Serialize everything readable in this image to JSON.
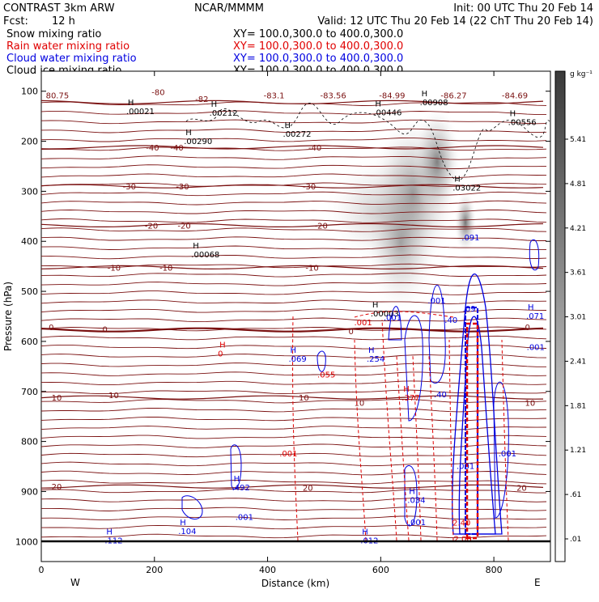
{
  "header": {
    "title": "CONTRAST  3km ARW",
    "fcst_label": "Fcst:",
    "fcst_value": "12 h",
    "source": "NCAR/MMMM",
    "init": "Init: 00 UTC Thu 20 Feb 14",
    "valid": "Valid: 12 UTC Thu 20 Feb 14 (22 ChT Thu 20 Feb 14)"
  },
  "legend": [
    {
      "name": "Snow mixing ratio",
      "xy": "XY= 100.0,300.0 to 400.0,300.0",
      "color": "#000000"
    },
    {
      "name": "Rain water mixing ratio",
      "xy": "XY= 100.0,300.0 to 400.0,300.0",
      "color": "#e00000"
    },
    {
      "name": "Cloud water mixing ratio",
      "xy": "XY= 100.0,300.0 to 400.0,300.0",
      "color": "#0000e0"
    },
    {
      "name": "Cloud ice mixing ratio",
      "xy": "XY= 100.0,300.0 to 400.0,300.0",
      "color": "#000000"
    }
  ],
  "chart_data": {
    "type": "heatmap",
    "xlabel": "Distance (km)",
    "ylabel": "Pressure (hPa)",
    "xlim": [
      0,
      900
    ],
    "ylim": [
      1040,
      60
    ],
    "x_ticks": [
      "0",
      "200",
      "400",
      "600",
      "800"
    ],
    "x_tick_values": [
      0,
      200,
      400,
      600,
      800
    ],
    "y_ticks": [
      "100",
      "200",
      "300",
      "400",
      "500",
      "600",
      "700",
      "800",
      "900",
      "1000"
    ],
    "y_tick_values": [
      100,
      200,
      300,
      400,
      500,
      600,
      700,
      800,
      900,
      1000
    ],
    "endpoints": {
      "left": "W",
      "right": "E"
    },
    "colorbar": {
      "unit": "g kg⁻¹",
      "ticks": [
        "5.41",
        "4.81",
        "4.21",
        "3.61",
        "3.01",
        "2.41",
        "1.81",
        "1.21",
        ".61",
        ".01"
      ]
    },
    "temperature_contours": [
      {
        "label": "-80",
        "level": -80,
        "p": 122
      },
      {
        "label": "-40",
        "level": -40,
        "p": 212
      },
      {
        "label": "-30",
        "level": -30,
        "p": 290
      },
      {
        "label": "-20",
        "level": -20,
        "p": 368
      },
      {
        "label": "-10",
        "level": -10,
        "p": 452
      },
      {
        "label": "0",
        "level": 0,
        "p": 577
      },
      {
        "label": "10",
        "level": 10,
        "p": 712
      },
      {
        "label": "20",
        "level": 20,
        "p": 890
      }
    ],
    "contour_labels": [
      {
        "text": "80.75",
        "x": 8,
        "p": 108,
        "color": "#7a1010"
      },
      {
        "text": "-80",
        "x": 195,
        "p": 101,
        "color": "#7a1010"
      },
      {
        "text": "-82",
        "x": 272,
        "p": 115,
        "color": "#7a1010"
      },
      {
        "text": "-83.1",
        "x": 393,
        "p": 108,
        "color": "#7a1010"
      },
      {
        "text": "-83.56",
        "x": 493,
        "p": 108,
        "color": "#7a1010"
      },
      {
        "text": "-84.99",
        "x": 597,
        "p": 108,
        "color": "#7a1010"
      },
      {
        "text": "-86.27",
        "x": 706,
        "p": 108,
        "color": "#7a1010"
      },
      {
        "text": "-84.69",
        "x": 814,
        "p": 108,
        "color": "#7a1010"
      },
      {
        "text": "-40",
        "x": 185,
        "p": 212,
        "color": "#7a1010"
      },
      {
        "text": "-40",
        "x": 228,
        "p": 212,
        "color": "#7a1010"
      },
      {
        "text": "-40",
        "x": 472,
        "p": 212,
        "color": "#7a1010"
      },
      {
        "text": "-30",
        "x": 144,
        "p": 290,
        "color": "#7a1010"
      },
      {
        "text": "-30",
        "x": 238,
        "p": 290,
        "color": "#7a1010"
      },
      {
        "text": "-30",
        "x": 462,
        "p": 290,
        "color": "#7a1010"
      },
      {
        "text": "-20",
        "x": 183,
        "p": 368,
        "color": "#7a1010"
      },
      {
        "text": "-20",
        "x": 241,
        "p": 368,
        "color": "#7a1010"
      },
      {
        "text": "-20",
        "x": 483,
        "p": 368,
        "color": "#7a1010"
      },
      {
        "text": "-10",
        "x": 117,
        "p": 452,
        "color": "#7a1010"
      },
      {
        "text": "-10",
        "x": 209,
        "p": 452,
        "color": "#7a1010"
      },
      {
        "text": "-10",
        "x": 467,
        "p": 452,
        "color": "#7a1010"
      },
      {
        "text": "0",
        "x": 13,
        "p": 571,
        "color": "#7a1010"
      },
      {
        "text": "0",
        "x": 108,
        "p": 575,
        "color": "#7a1010"
      },
      {
        "text": "0",
        "x": 543,
        "p": 579,
        "color": "#7a1010"
      },
      {
        "text": "0",
        "x": 855,
        "p": 571,
        "color": "#7a1010"
      },
      {
        "text": "10",
        "x": 18,
        "p": 712,
        "color": "#7a1010"
      },
      {
        "text": "10",
        "x": 119,
        "p": 707,
        "color": "#7a1010"
      },
      {
        "text": "10",
        "x": 455,
        "p": 712,
        "color": "#7a1010"
      },
      {
        "text": "10",
        "x": 553,
        "p": 722,
        "color": "#7a1010"
      },
      {
        "text": "10",
        "x": 855,
        "p": 722,
        "color": "#7a1010"
      },
      {
        "text": "20",
        "x": 18,
        "p": 890,
        "color": "#7a1010"
      },
      {
        "text": "20",
        "x": 462,
        "p": 892,
        "color": "#7a1010"
      },
      {
        "text": "20",
        "x": 840,
        "p": 892,
        "color": "#7a1010"
      }
    ],
    "maxima": [
      {
        "h": "H",
        "value": ".00021",
        "x": 153,
        "p": 128,
        "color": "#000000"
      },
      {
        "h": "H",
        "value": ".00212",
        "x": 300,
        "p": 131,
        "color": "#000000"
      },
      {
        "h": "H",
        "value": ".00290",
        "x": 255,
        "p": 188,
        "color": "#000000"
      },
      {
        "h": "H",
        "value": ".00272",
        "x": 430,
        "p": 173,
        "color": "#000000"
      },
      {
        "h": "H",
        "value": ".00446",
        "x": 590,
        "p": 130,
        "color": "#000000"
      },
      {
        "h": "H",
        "value": ".00908",
        "x": 672,
        "p": 110,
        "color": "#000000"
      },
      {
        "h": "H",
        "value": ".00556",
        "x": 828,
        "p": 150,
        "color": "#000000"
      },
      {
        "h": "H",
        "value": ".03022",
        "x": 730,
        "p": 281,
        "color": "#000000"
      },
      {
        "h": "H",
        "value": ".00068",
        "x": 268,
        "p": 414,
        "color": "#000000"
      },
      {
        "h": "H",
        "value": ".00003",
        "x": 585,
        "p": 532,
        "color": "#000000"
      },
      {
        "h": "H",
        "value": "0",
        "x": 315,
        "p": 612,
        "color": "#e00000"
      },
      {
        "h": "H",
        "value": ".377",
        "x": 640,
        "p": 700,
        "color": "#e00000"
      },
      {
        "h": "H",
        "value": ".069",
        "x": 440,
        "p": 623,
        "color": "#0000e0"
      },
      {
        "h": "H",
        "value": ".254",
        "x": 578,
        "p": 623,
        "color": "#0000e0"
      },
      {
        "h": "H",
        "value": ".071",
        "x": 860,
        "p": 537,
        "color": "#0000e0"
      },
      {
        "h": "H",
        "value": ".492",
        "x": 340,
        "p": 880,
        "color": "#0000e0"
      },
      {
        "h": "H",
        "value": ".104",
        "x": 245,
        "p": 967,
        "color": "#0000e0"
      },
      {
        "h": "H",
        "value": ".112",
        "x": 115,
        "p": 986,
        "color": "#0000e0"
      },
      {
        "h": "H",
        "value": ".012",
        "x": 567,
        "p": 986,
        "color": "#0000e0"
      },
      {
        "h": "H",
        "value": ".034",
        "x": 650,
        "p": 905,
        "color": "#0000e0"
      }
    ],
    "extra_labels": [
      {
        "text": ".001",
        "x": 553,
        "p": 568,
        "color": "#e00000"
      },
      {
        "text": ".001",
        "x": 605,
        "p": 558,
        "color": "#0000e0"
      },
      {
        "text": ".001",
        "x": 683,
        "p": 524,
        "color": "#0000e0"
      },
      {
        "text": ".055",
        "x": 488,
        "p": 672,
        "color": "#e00000"
      },
      {
        "text": ".40",
        "x": 713,
        "p": 563,
        "color": "#0000e0"
      },
      {
        "text": ".40",
        "x": 694,
        "p": 712,
        "color": "#0000e0"
      },
      {
        "text": ".001",
        "x": 421,
        "p": 830,
        "color": "#e00000"
      },
      {
        "text": ".001",
        "x": 343,
        "p": 957,
        "color": "#0000e0"
      },
      {
        "text": ".001",
        "x": 648,
        "p": 967,
        "color": "#0000e0"
      },
      {
        "text": ".001",
        "x": 808,
        "p": 830,
        "color": "#0000e0"
      },
      {
        "text": ".001",
        "x": 734,
        "p": 855,
        "color": "#0000e0"
      },
      {
        "text": ".001",
        "x": 858,
        "p": 617,
        "color": "#0000e0"
      },
      {
        "text": ".091",
        "x": 743,
        "p": 398,
        "color": "#0000e0"
      },
      {
        "text": ".09",
        "x": 745,
        "p": 540,
        "color": "#0000e0"
      },
      {
        "text": "2.40",
        "x": 727,
        "p": 968,
        "color": "#e00000"
      },
      {
        "text": "2.00",
        "x": 729,
        "p": 1000,
        "color": "#e00000"
      }
    ]
  }
}
